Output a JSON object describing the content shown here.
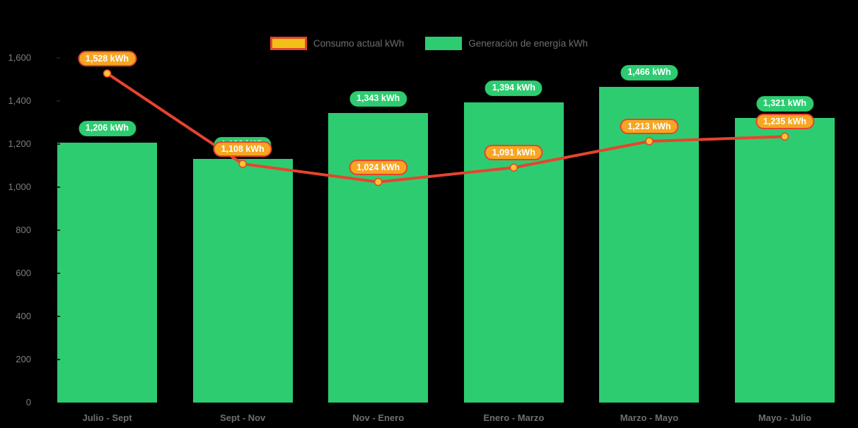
{
  "chart_data": {
    "type": "combo-bar-line",
    "title": "",
    "background": "#000000",
    "categories": [
      "Julio - Sept",
      "Sept - Nov",
      "Nov - Enero",
      "Enero - Marzo",
      "Marzo - Mayo",
      "Mayo - Julio"
    ],
    "series": [
      {
        "name": "Consumo actual kWh",
        "type": "line",
        "values": [
          1528,
          1108,
          1024,
          1091,
          1213,
          1235
        ],
        "labels": [
          "1,528 kWh",
          "1,108 kWh",
          "1,024 kWh",
          "1,091 kWh",
          "1,213 kWh",
          "1,235 kWh"
        ],
        "line_color": "#e8432d",
        "marker_fill": "#fdc331",
        "label_fill": "#f6a622",
        "label_border": "#e8432d"
      },
      {
        "name": "Generación de energía kWh",
        "type": "bar",
        "values": [
          1206,
          1132,
          1343,
          1394,
          1466,
          1321
        ],
        "labels": [
          "1,206 kWh",
          "1,132 kWh",
          "1,343 kWh",
          "1,394 kWh",
          "1,466 kWh",
          "1,321 kWh"
        ],
        "bar_color": "#2ecc71",
        "label_fill": "#2ecc71"
      }
    ],
    "value_suffix": " kWh",
    "y_axis": {
      "min": 0,
      "max": 1600,
      "step": 200,
      "tick_labels": [
        "0",
        "200",
        "400",
        "600",
        "800",
        "1,000",
        "1,200",
        "1,400",
        "1,600"
      ]
    },
    "legend_position": "top-center",
    "grid": false
  },
  "legend": {
    "items": [
      {
        "label": "Consumo actual kWh",
        "swatch": "line"
      },
      {
        "label": "Generación de energía kWh",
        "swatch": "bar"
      }
    ]
  },
  "colors": {
    "bar_green": "#2ecc71",
    "line_red": "#e8432d",
    "label_orange": "#f6a622",
    "marker_yellow": "#fdc331",
    "legend_swatch_yellow": "#f2c118",
    "axis_text": "#7e7e7e",
    "background": "#000000"
  }
}
